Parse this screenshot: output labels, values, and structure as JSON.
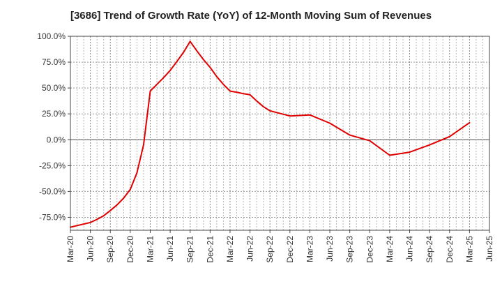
{
  "chart_data": {
    "type": "line",
    "title": "[3686]  Trend of Growth Rate (YoY) of 12-Month Moving Sum of Revenues",
    "xlabel": "",
    "ylabel": "",
    "ylim": [
      -87.5,
      100
    ],
    "y_ticks": [
      {
        "value": 100,
        "label": "100.0%"
      },
      {
        "value": 75,
        "label": "75.0%"
      },
      {
        "value": 50,
        "label": "50.0%"
      },
      {
        "value": 25,
        "label": "25.0%"
      },
      {
        "value": 0,
        "label": "0.0%"
      },
      {
        "value": -25,
        "label": "-25.0%"
      },
      {
        "value": -50,
        "label": "-50.0%"
      },
      {
        "value": -75,
        "label": "-75.0%"
      }
    ],
    "x_ticks": [
      "Mar-20",
      "Jun-20",
      "Sep-20",
      "Dec-20",
      "Mar-21",
      "Jun-21",
      "Sep-21",
      "Dec-21",
      "Mar-22",
      "Jun-22",
      "Sep-22",
      "Dec-22",
      "Mar-23",
      "Jun-23",
      "Sep-23",
      "Dec-23",
      "Mar-24",
      "Jun-24",
      "Sep-24",
      "Dec-24",
      "Mar-25",
      "Jun-25"
    ],
    "grid": true,
    "line_color": "#e00000",
    "series": [
      {
        "values": [
          {
            "x": "2020-03",
            "y": -84.5
          },
          {
            "x": "2020-04",
            "y": -83.0
          },
          {
            "x": "2020-05",
            "y": -81.5
          },
          {
            "x": "2020-06",
            "y": -80.0
          },
          {
            "x": "2020-07",
            "y": -77.0
          },
          {
            "x": "2020-08",
            "y": -73.5
          },
          {
            "x": "2020-09",
            "y": -68.5
          },
          {
            "x": "2020-10",
            "y": -63.0
          },
          {
            "x": "2020-11",
            "y": -56.5
          },
          {
            "x": "2020-12",
            "y": -48.0
          },
          {
            "x": "2021-01",
            "y": -32.0
          },
          {
            "x": "2021-02",
            "y": -5.0
          },
          {
            "x": "2021-03",
            "y": 47.0
          },
          {
            "x": "2021-04",
            "y": 53.5
          },
          {
            "x": "2021-05",
            "y": 60.0
          },
          {
            "x": "2021-06",
            "y": 67.0
          },
          {
            "x": "2021-07",
            "y": 75.5
          },
          {
            "x": "2021-08",
            "y": 84.5
          },
          {
            "x": "2021-09",
            "y": 95.0
          },
          {
            "x": "2021-10",
            "y": 86.0
          },
          {
            "x": "2021-11",
            "y": 77.5
          },
          {
            "x": "2021-12",
            "y": 70.0
          },
          {
            "x": "2022-01",
            "y": 61.0
          },
          {
            "x": "2022-02",
            "y": 53.5
          },
          {
            "x": "2022-03",
            "y": 47.0
          },
          {
            "x": "2022-04",
            "y": 46.0
          },
          {
            "x": "2022-05",
            "y": 44.5
          },
          {
            "x": "2022-06",
            "y": 43.5
          },
          {
            "x": "2022-07",
            "y": 37.5
          },
          {
            "x": "2022-08",
            "y": 32.0
          },
          {
            "x": "2022-09",
            "y": 28.0
          },
          {
            "x": "2022-12",
            "y": 23.0
          },
          {
            "x": "2023-03",
            "y": 24.0
          },
          {
            "x": "2023-06",
            "y": 16.0
          },
          {
            "x": "2023-09",
            "y": 4.5
          },
          {
            "x": "2023-12",
            "y": -1.0
          },
          {
            "x": "2024-03",
            "y": -15.0
          },
          {
            "x": "2024-06",
            "y": -12.0
          },
          {
            "x": "2024-09",
            "y": -5.0
          },
          {
            "x": "2024-12",
            "y": 3.0
          },
          {
            "x": "2025-03",
            "y": 16.5
          }
        ]
      }
    ]
  }
}
